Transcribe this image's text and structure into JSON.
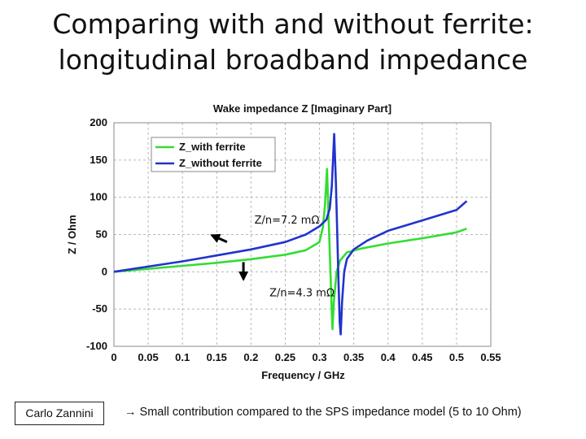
{
  "slide": {
    "title_line1": "Comparing with and without ferrite:",
    "title_line2": "longitudinal broadband impedance",
    "author": "Carlo Zannini",
    "footer_arrow": "→",
    "footer_text": "Small contribution compared to the SPS impedance model (5 to 10 Ohm)"
  },
  "chart_data": {
    "type": "line",
    "title": "Wake impedance Z [Imaginary Part]",
    "xlabel": "Frequency / GHz",
    "ylabel": "Z / Ohm",
    "xlim": [
      0,
      0.55
    ],
    "ylim": [
      -100,
      200
    ],
    "xticks": [
      "0",
      "0.05",
      "0.1",
      "0.15",
      "0.2",
      "0.25",
      "0.3",
      "0.35",
      "0.4",
      "0.45",
      "0.5",
      "0.55"
    ],
    "yticks": [
      "-100",
      "-50",
      "0",
      "50",
      "100",
      "150",
      "200"
    ],
    "grid": true,
    "legend_position": "top-left",
    "series": [
      {
        "name": "Z_with ferrite",
        "color": "#33dd33",
        "points": [
          [
            0,
            0
          ],
          [
            0.05,
            4
          ],
          [
            0.1,
            8
          ],
          [
            0.15,
            12
          ],
          [
            0.2,
            17
          ],
          [
            0.25,
            23
          ],
          [
            0.28,
            29
          ],
          [
            0.3,
            40
          ],
          [
            0.305,
            60
          ],
          [
            0.308,
            90
          ],
          [
            0.311,
            138
          ],
          [
            0.313,
            80
          ],
          [
            0.316,
            0
          ],
          [
            0.318,
            -55
          ],
          [
            0.319,
            -77
          ],
          [
            0.321,
            -40
          ],
          [
            0.325,
            0
          ],
          [
            0.33,
            15
          ],
          [
            0.34,
            26
          ],
          [
            0.36,
            31
          ],
          [
            0.4,
            38
          ],
          [
            0.45,
            45
          ],
          [
            0.5,
            53
          ],
          [
            0.515,
            58
          ]
        ]
      },
      {
        "name": "Z_without ferrite",
        "color": "#2233cc",
        "points": [
          [
            0,
            0
          ],
          [
            0.05,
            7
          ],
          [
            0.1,
            14
          ],
          [
            0.15,
            22
          ],
          [
            0.2,
            30
          ],
          [
            0.25,
            40
          ],
          [
            0.28,
            50
          ],
          [
            0.3,
            61
          ],
          [
            0.31,
            70
          ],
          [
            0.315,
            85
          ],
          [
            0.318,
            115
          ],
          [
            0.3215,
            185
          ],
          [
            0.324,
            120
          ],
          [
            0.326,
            50
          ],
          [
            0.328,
            -20
          ],
          [
            0.3295,
            -68
          ],
          [
            0.331,
            -84
          ],
          [
            0.333,
            -40
          ],
          [
            0.336,
            0
          ],
          [
            0.34,
            17
          ],
          [
            0.35,
            30
          ],
          [
            0.37,
            42
          ],
          [
            0.4,
            55
          ],
          [
            0.45,
            69
          ],
          [
            0.5,
            83
          ],
          [
            0.515,
            95
          ]
        ]
      }
    ],
    "annotations": [
      {
        "text": "Z/n=7.2 mΩ",
        "x": 0.205,
        "y": 65,
        "arrow_tail": [
          0.165,
          40
        ],
        "arrow_head": [
          0.143,
          49
        ]
      },
      {
        "text": "Z/n=4.3 mΩ",
        "x": 0.227,
        "y": -33,
        "arrow_tail": [
          0.189,
          13
        ],
        "arrow_head": [
          0.189,
          -10
        ]
      }
    ]
  }
}
